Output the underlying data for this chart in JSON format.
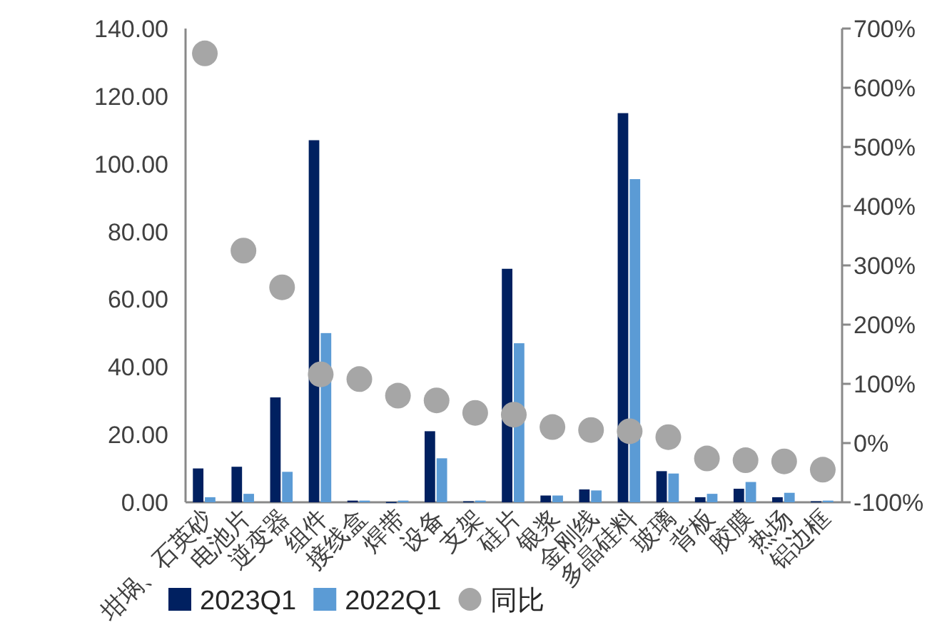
{
  "chart_data": {
    "type": "bar",
    "categories": [
      "坩埚、石英砂",
      "电池片",
      "逆变器",
      "组件",
      "接线盒",
      "焊带",
      "设备",
      "支架",
      "硅片",
      "银浆",
      "金刚线",
      "多晶硅料",
      "玻璃",
      "背板",
      "胶膜",
      "热场",
      "铝边框"
    ],
    "series": [
      {
        "name": "2023Q1",
        "color": "#002060",
        "values": [
          10,
          10.5,
          31,
          107,
          0.5,
          0.1,
          21,
          0.3,
          69,
          2,
          3.8,
          115,
          9.2,
          1.5,
          4,
          1.5,
          0.3
        ]
      },
      {
        "name": "2022Q1",
        "color": "#5b9bd5",
        "values": [
          1.5,
          2.5,
          9,
          50,
          0.5,
          0.5,
          13,
          0.5,
          47,
          2,
          3.5,
          95.5,
          8.5,
          2.5,
          6,
          2.8,
          0.5
        ]
      },
      {
        "name": "同比",
        "type": "scatter",
        "axis": "y2",
        "color": "#a6a6a6",
        "marker": "circle",
        "values": [
          658,
          325,
          263,
          116,
          108,
          80,
          72,
          51,
          48,
          27,
          22,
          20,
          10,
          -26,
          -29,
          -31,
          -45
        ]
      }
    ],
    "ylim": [
      0,
      140
    ],
    "yticks": [
      {
        "value": 0,
        "label": "0.00"
      },
      {
        "value": 20,
        "label": "20.00"
      },
      {
        "value": 40,
        "label": "40.00"
      },
      {
        "value": 60,
        "label": "60.00"
      },
      {
        "value": 80,
        "label": "80.00"
      },
      {
        "value": 100,
        "label": "100.00"
      },
      {
        "value": 120,
        "label": "120.00"
      },
      {
        "value": 140,
        "label": "140.00"
      }
    ],
    "y2lim": [
      -100,
      700
    ],
    "y2ticks": [
      {
        "value": -100,
        "label": "-100%"
      },
      {
        "value": 0,
        "label": "0%"
      },
      {
        "value": 100,
        "label": "100%"
      },
      {
        "value": 200,
        "label": "200%"
      },
      {
        "value": 300,
        "label": "300%"
      },
      {
        "value": 400,
        "label": "400%"
      },
      {
        "value": 500,
        "label": "500%"
      },
      {
        "value": 600,
        "label": "600%"
      },
      {
        "value": 700,
        "label": "700%"
      }
    ],
    "grid": false,
    "legend": "bottom"
  }
}
